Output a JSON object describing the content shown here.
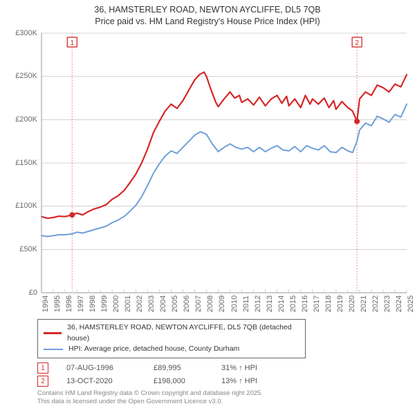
{
  "title_line1": "36, HAMSTERLEY ROAD, NEWTON AYCLIFFE, DL5 7QB",
  "title_line2": "Price paid vs. HM Land Registry's House Price Index (HPI)",
  "chart": {
    "type": "line",
    "background_color": "#ffffff",
    "grid_color": "#c9c9c9",
    "tick_color": "#6a6a6a",
    "label_fontsize": 11,
    "title_fontsize": 12.5,
    "x": {
      "min": 1994,
      "max": 2025,
      "step": 1
    },
    "y": {
      "min": 0,
      "max": 300000,
      "step": 50000,
      "tick_labels": [
        "£0",
        "£50K",
        "£100K",
        "£150K",
        "£200K",
        "£250K",
        "£300K"
      ]
    },
    "grid_y_lines": [
      0,
      50000,
      100000,
      150000,
      200000,
      250000,
      300000
    ],
    "marker_years": [
      1996.6,
      2020.78
    ],
    "marker_labels": [
      "1",
      "2"
    ],
    "marker_box_color": "#d62728",
    "marker_line_color": "#d62728",
    "marker_line_dash": "2,2",
    "series": [
      {
        "name": "36, HAMSTERLEY ROAD, NEWTON AYCLIFFE, DL5 7QB (detached house)",
        "color": "#d62728",
        "width": 2.2,
        "sale_marker_radius": 4,
        "sale_markers": [
          {
            "year": 1996.6,
            "value": 89995
          },
          {
            "year": 2020.78,
            "value": 198000
          }
        ],
        "points": [
          [
            1994,
            88000
          ],
          [
            1994.5,
            86000
          ],
          [
            1995,
            87000
          ],
          [
            1995.5,
            88500
          ],
          [
            1996,
            88000
          ],
          [
            1996.6,
            89995
          ],
          [
            1997,
            92000
          ],
          [
            1997.5,
            90000
          ],
          [
            1998,
            94000
          ],
          [
            1998.5,
            97000
          ],
          [
            1999,
            99000
          ],
          [
            1999.5,
            102000
          ],
          [
            2000,
            108000
          ],
          [
            2000.5,
            112000
          ],
          [
            2001,
            118000
          ],
          [
            2001.5,
            127000
          ],
          [
            2002,
            137000
          ],
          [
            2002.5,
            150000
          ],
          [
            2003,
            166000
          ],
          [
            2003.5,
            185000
          ],
          [
            2004,
            198000
          ],
          [
            2004.5,
            210000
          ],
          [
            2005,
            218000
          ],
          [
            2005.5,
            213000
          ],
          [
            2006,
            222000
          ],
          [
            2006.5,
            234000
          ],
          [
            2007,
            246000
          ],
          [
            2007.4,
            252000
          ],
          [
            2007.8,
            255000
          ],
          [
            2008,
            250000
          ],
          [
            2008.4,
            234000
          ],
          [
            2008.8,
            220000
          ],
          [
            2009,
            215000
          ],
          [
            2009.5,
            224000
          ],
          [
            2010,
            232000
          ],
          [
            2010.4,
            225000
          ],
          [
            2010.8,
            228000
          ],
          [
            2011,
            220000
          ],
          [
            2011.5,
            224000
          ],
          [
            2012,
            217000
          ],
          [
            2012.5,
            226000
          ],
          [
            2013,
            216000
          ],
          [
            2013.5,
            224000
          ],
          [
            2014,
            228000
          ],
          [
            2014.4,
            219000
          ],
          [
            2014.8,
            227000
          ],
          [
            2015,
            216000
          ],
          [
            2015.5,
            224000
          ],
          [
            2016,
            214000
          ],
          [
            2016.4,
            228000
          ],
          [
            2016.8,
            218000
          ],
          [
            2017,
            224000
          ],
          [
            2017.5,
            218000
          ],
          [
            2018,
            225000
          ],
          [
            2018.4,
            214000
          ],
          [
            2018.8,
            222000
          ],
          [
            2019,
            212000
          ],
          [
            2019.5,
            221000
          ],
          [
            2020,
            214000
          ],
          [
            2020.4,
            210000
          ],
          [
            2020.78,
            198000
          ],
          [
            2021,
            224000
          ],
          [
            2021.5,
            232000
          ],
          [
            2022,
            228000
          ],
          [
            2022.5,
            240000
          ],
          [
            2023,
            237000
          ],
          [
            2023.5,
            232000
          ],
          [
            2024,
            241000
          ],
          [
            2024.5,
            238000
          ],
          [
            2025,
            252000
          ]
        ]
      },
      {
        "name": "HPI: Average price, detached house, County Durham",
        "color": "#6f9fd8",
        "width": 2.0,
        "points": [
          [
            1994,
            66000
          ],
          [
            1994.5,
            65000
          ],
          [
            1995,
            66000
          ],
          [
            1995.5,
            67000
          ],
          [
            1996,
            67000
          ],
          [
            1996.6,
            68000
          ],
          [
            1997,
            70000
          ],
          [
            1997.5,
            69000
          ],
          [
            1998,
            71000
          ],
          [
            1998.5,
            73000
          ],
          [
            1999,
            75000
          ],
          [
            1999.5,
            77000
          ],
          [
            2000,
            81000
          ],
          [
            2000.5,
            84000
          ],
          [
            2001,
            88000
          ],
          [
            2001.5,
            94000
          ],
          [
            2002,
            101000
          ],
          [
            2002.5,
            111000
          ],
          [
            2003,
            124000
          ],
          [
            2003.5,
            138000
          ],
          [
            2004,
            149000
          ],
          [
            2004.5,
            158000
          ],
          [
            2005,
            164000
          ],
          [
            2005.5,
            161000
          ],
          [
            2006,
            168000
          ],
          [
            2006.5,
            175000
          ],
          [
            2007,
            182000
          ],
          [
            2007.5,
            186000
          ],
          [
            2008,
            183000
          ],
          [
            2008.5,
            172000
          ],
          [
            2009,
            163000
          ],
          [
            2009.5,
            168000
          ],
          [
            2010,
            172000
          ],
          [
            2010.5,
            168000
          ],
          [
            2011,
            166000
          ],
          [
            2011.5,
            168000
          ],
          [
            2012,
            163000
          ],
          [
            2012.5,
            168000
          ],
          [
            2013,
            163000
          ],
          [
            2013.5,
            167000
          ],
          [
            2014,
            170000
          ],
          [
            2014.5,
            165000
          ],
          [
            2015,
            164000
          ],
          [
            2015.5,
            169000
          ],
          [
            2016,
            163000
          ],
          [
            2016.5,
            170000
          ],
          [
            2017,
            167000
          ],
          [
            2017.5,
            165000
          ],
          [
            2018,
            170000
          ],
          [
            2018.5,
            163000
          ],
          [
            2019,
            162000
          ],
          [
            2019.5,
            168000
          ],
          [
            2020,
            164000
          ],
          [
            2020.4,
            162000
          ],
          [
            2020.78,
            175000
          ],
          [
            2021,
            188000
          ],
          [
            2021.5,
            196000
          ],
          [
            2022,
            193000
          ],
          [
            2022.5,
            204000
          ],
          [
            2023,
            201000
          ],
          [
            2023.5,
            197000
          ],
          [
            2024,
            206000
          ],
          [
            2024.5,
            203000
          ],
          [
            2025,
            218000
          ]
        ]
      }
    ]
  },
  "legend": [
    {
      "color": "#d62728",
      "label": "36, HAMSTERLEY ROAD, NEWTON AYCLIFFE, DL5 7QB (detached house)"
    },
    {
      "color": "#6f9fd8",
      "label": "HPI: Average price, detached house, County Durham"
    }
  ],
  "sales": [
    {
      "badge": "1",
      "date": "07-AUG-1996",
      "price": "£89,995",
      "delta": "31% ↑ HPI"
    },
    {
      "badge": "2",
      "date": "13-OCT-2020",
      "price": "£198,000",
      "delta": "13% ↑ HPI"
    }
  ],
  "license_line1": "Contains HM Land Registry data © Crown copyright and database right 2025.",
  "license_line2": "This data is licensed under the Open Government Licence v3.0."
}
